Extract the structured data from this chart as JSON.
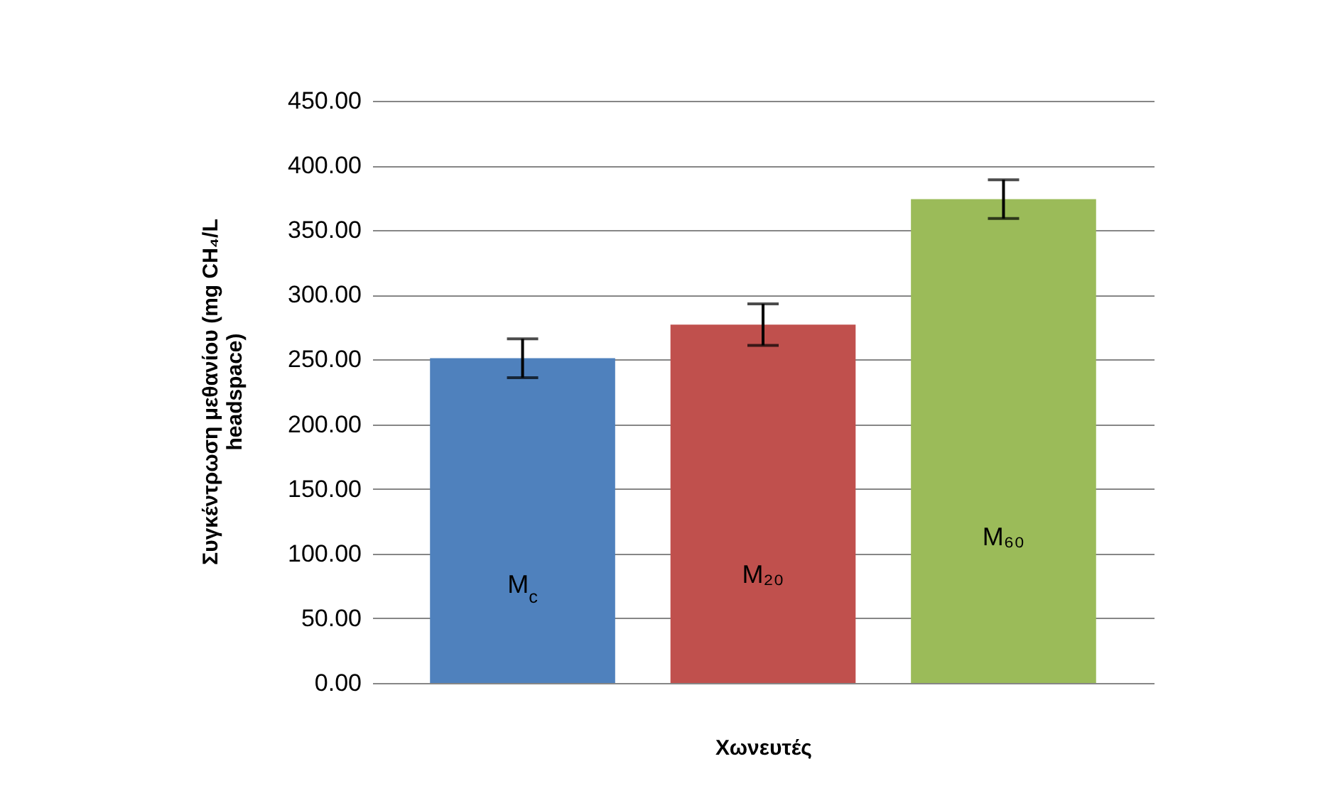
{
  "chart_data": {
    "type": "bar",
    "categories": [
      "M$_{c}$",
      "M₂₀",
      "M₆₀"
    ],
    "values": [
      251,
      277,
      374
    ],
    "errors": [
      15,
      16,
      15
    ],
    "colors": [
      "#4f81bd",
      "#c0504d",
      "#9bbb59"
    ],
    "xlabel": "Χωνευτές",
    "ylabel": "Συγκέντρωση μεθανίου (mg CH₄/L headspace)",
    "ylim": [
      0,
      450
    ],
    "yticks": [
      {
        "value": 0,
        "label": "0.00"
      },
      {
        "value": 50,
        "label": "50.00"
      },
      {
        "value": 100,
        "label": "100.00"
      },
      {
        "value": 150,
        "label": "150.00"
      },
      {
        "value": 200,
        "label": "200.00"
      },
      {
        "value": 250,
        "label": "250.00"
      },
      {
        "value": 300,
        "label": "300.00"
      },
      {
        "value": 350,
        "label": "350.00"
      },
      {
        "value": 400,
        "label": "400.00"
      },
      {
        "value": 450,
        "label": "450.00"
      }
    ],
    "tick_labels": "y",
    "grid": "y"
  }
}
